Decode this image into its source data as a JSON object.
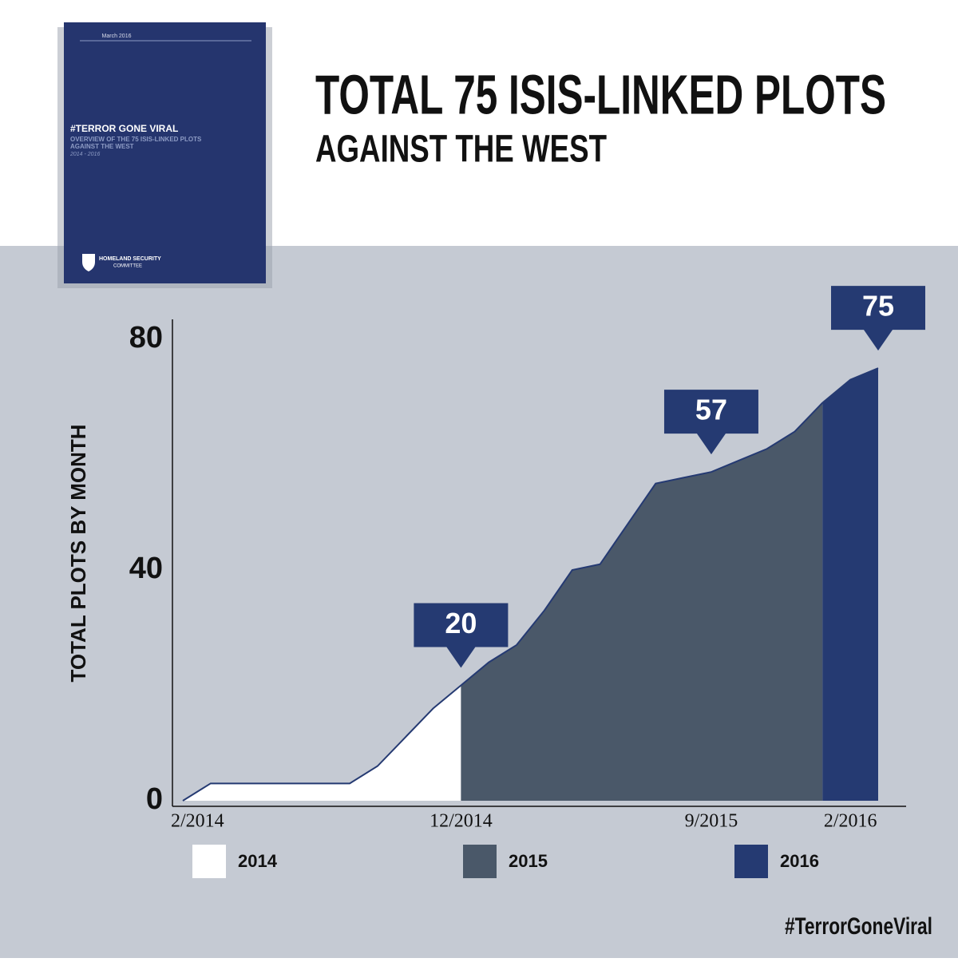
{
  "cover": {
    "date": "March 2016",
    "title": "#TERROR GONE VIRAL",
    "subtitle_1": "OVERVIEW OF THE 75 ISIS-LINKED PLOTS",
    "subtitle_2": "AGAINST THE WEST",
    "years": "2014 - 2016",
    "org_1": "HOMELAND SECURITY",
    "org_2": "COMMITTEE"
  },
  "hashtag": "#TerrorGoneViral",
  "chart_data": {
    "type": "area",
    "title": "TOTAL 75 ISIS-LINKED PLOTS",
    "subtitle": "AGAINST THE WEST",
    "y_label": "TOTAL PLOTS BY MONTH",
    "x": [
      "2/2014",
      null,
      null,
      null,
      null,
      null,
      null,
      null,
      null,
      null,
      "12/2014",
      null,
      null,
      null,
      null,
      null,
      null,
      null,
      null,
      "9/2015",
      null,
      null,
      null,
      null,
      "2/2016",
      null
    ],
    "ylim": [
      0,
      80
    ],
    "yticks": [
      0,
      40,
      80
    ],
    "line_color": "#253a72",
    "series": [
      {
        "name": "2014",
        "color": "#ffffff",
        "values": [
          0,
          3,
          3,
          3,
          3,
          3,
          3,
          6,
          11,
          16,
          20,
          null,
          null,
          null,
          null,
          null,
          null,
          null,
          null,
          null,
          null,
          null,
          null,
          null,
          null,
          null
        ],
        "value_labels": [
          null,
          null,
          null,
          null,
          null,
          null,
          null,
          null,
          null,
          null,
          "20",
          null,
          null,
          null,
          null,
          null,
          null,
          null,
          null,
          null,
          null,
          null,
          null,
          null,
          null,
          null
        ]
      },
      {
        "name": "2015",
        "color": "#4a5869",
        "values": [
          null,
          null,
          null,
          null,
          null,
          null,
          null,
          null,
          null,
          null,
          20,
          24,
          27,
          33,
          40,
          41,
          48,
          55,
          56,
          57,
          59,
          61,
          64,
          69,
          null,
          null
        ],
        "value_labels": [
          null,
          null,
          null,
          null,
          null,
          null,
          null,
          null,
          null,
          null,
          null,
          null,
          null,
          null,
          null,
          null,
          null,
          null,
          null,
          "57",
          null,
          null,
          null,
          null,
          null,
          null
        ]
      },
      {
        "name": "2016",
        "color": "#253a72",
        "values": [
          null,
          null,
          null,
          null,
          null,
          null,
          null,
          null,
          null,
          null,
          null,
          null,
          null,
          null,
          null,
          null,
          null,
          null,
          null,
          null,
          null,
          null,
          null,
          69,
          73,
          75
        ],
        "value_labels": [
          null,
          null,
          null,
          null,
          null,
          null,
          null,
          null,
          null,
          null,
          null,
          null,
          null,
          null,
          null,
          null,
          null,
          null,
          null,
          null,
          null,
          null,
          null,
          null,
          null,
          "75"
        ]
      }
    ]
  }
}
